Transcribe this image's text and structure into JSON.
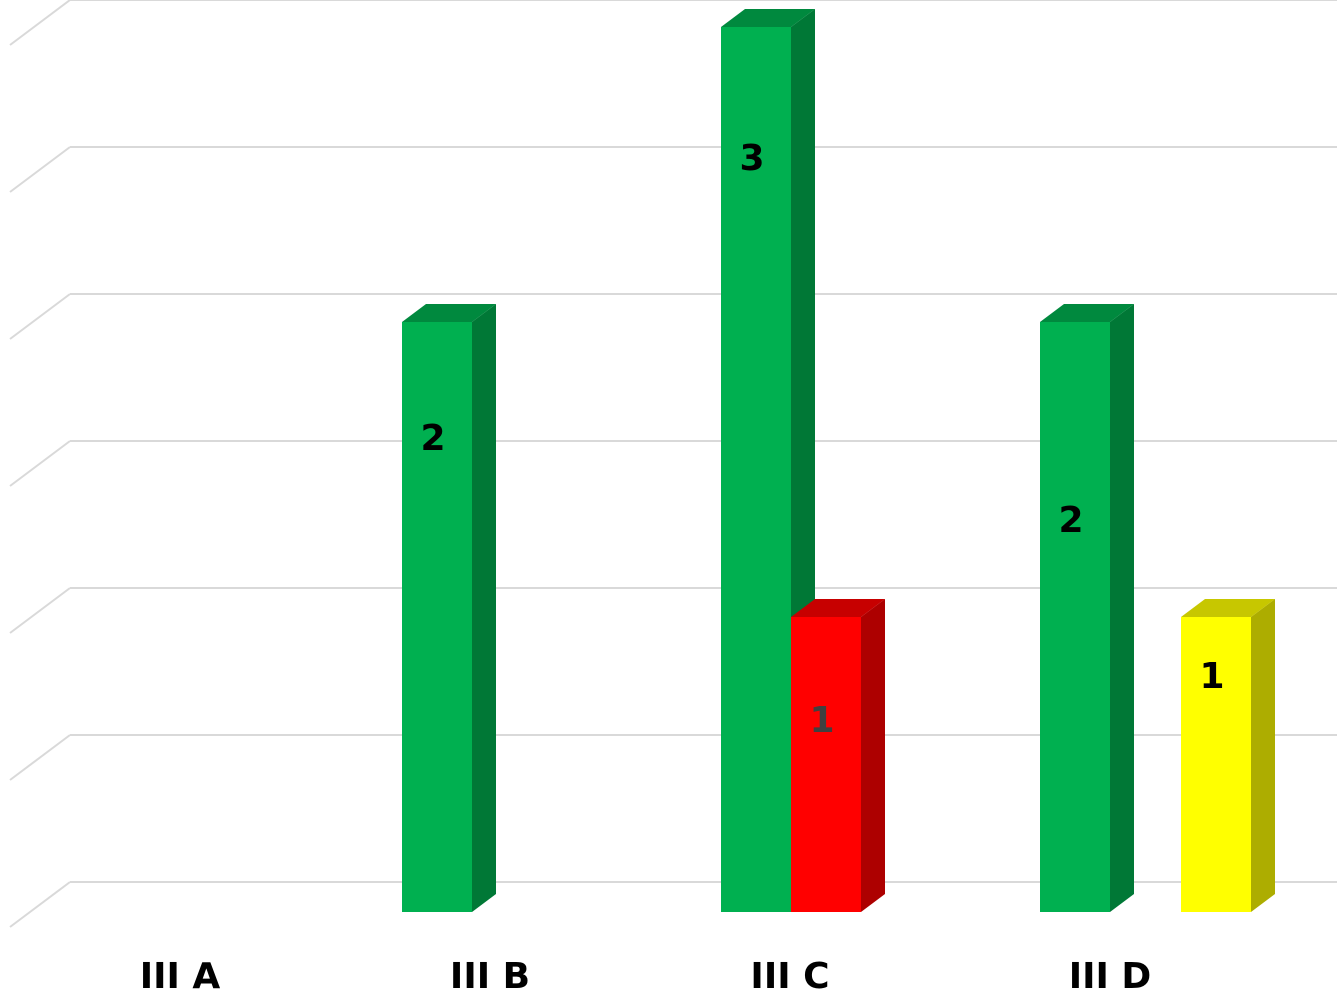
{
  "chart_data": {
    "type": "bar",
    "style": "3d-clustered-column",
    "categories": [
      "III A",
      "III B",
      "III C",
      "III D"
    ],
    "series": [
      {
        "color": "#00B050",
        "values": [
          0,
          2,
          3,
          2
        ],
        "labels": [
          "",
          "2",
          "3",
          "2"
        ]
      },
      {
        "color": "#FF0000",
        "values": [
          0,
          0,
          1,
          0
        ],
        "labels": [
          "",
          "",
          "1",
          ""
        ]
      },
      {
        "color": "#FFFF00",
        "values": [
          0,
          0,
          0,
          1
        ],
        "labels": [
          "",
          "",
          "",
          "1"
        ]
      }
    ],
    "ylim": [
      0,
      3
    ],
    "grid": true,
    "legend": "none",
    "title": "",
    "xlabel": "",
    "ylabel": ""
  }
}
